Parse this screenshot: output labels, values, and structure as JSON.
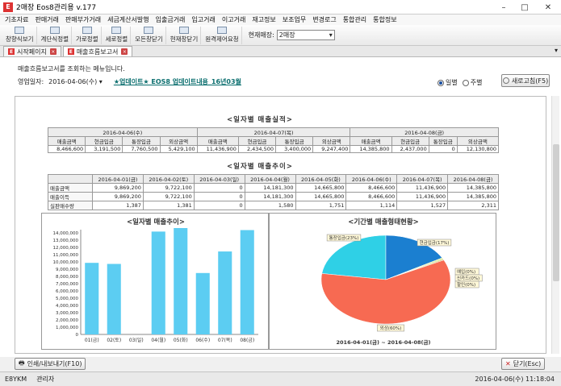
{
  "window": {
    "title": "2매장 Eos8관리용 v.177",
    "app_icon": "E"
  },
  "menu": [
    "기초자료",
    "판매거래",
    "판매부가거래",
    "세금계산서발행",
    "입출금거래",
    "입고거래",
    "이고거래",
    "재고정보",
    "보조업무",
    "변경로그",
    "통합관리",
    "통합정보"
  ],
  "toolbar": {
    "buttons": [
      "창향식보기",
      "계단식정렬",
      "가로정렬",
      "세로정렬",
      "모든창닫기",
      "현재창닫기",
      "원격제어요청"
    ],
    "store_label": "현재매장:",
    "store_value": "2매장"
  },
  "tabs": [
    {
      "label": "시작페이지",
      "active": false
    },
    {
      "label": "매출흐름보고서",
      "active": true
    }
  ],
  "report_header": {
    "description": "매출흐름보고서를 조회하는 메뉴입니다.",
    "date_label": "영업일자:",
    "date_value": "2016-04-06(수)",
    "update_link": "★업데이트★ EOS8 업데이트내용_16년03월",
    "radio_daily": "일별",
    "radio_weekly": "주별",
    "refresh_label": "새로고침(F5)"
  },
  "daily_sales": {
    "title": "<일자별 매출실적>",
    "dates": [
      "2016-04-06(수)",
      "2016-04-07(목)",
      "2016-04-08(금)"
    ],
    "columns": [
      "매출금액",
      "현금입금",
      "통장입금",
      "외상금액"
    ],
    "rows": [
      [
        "8,466,600",
        "3,191,500",
        "7,760,500",
        "5,429,100"
      ],
      [
        "11,436,900",
        "2,434,500",
        "3,400,000",
        "9,247,400"
      ],
      [
        "14,385,800",
        "2,437,000",
        "0",
        "12,130,800"
      ]
    ]
  },
  "sales_trend": {
    "title": "<일자별 매출추이>",
    "dates": [
      "2016-04-01(금)",
      "2016-04-02(토)",
      "2016-04-03(일)",
      "2016-04-04(월)",
      "2016-04-05(화)",
      "2016-04-06(수)",
      "2016-04-07(목)",
      "2016-04-08(금)"
    ],
    "rows": [
      {
        "label": "매출금액",
        "values": [
          "9,869,200",
          "9,722,100",
          "0",
          "14,181,300",
          "14,665,800",
          "8,466,600",
          "11,436,900",
          "14,385,800"
        ]
      },
      {
        "label": "매출이득",
        "values": [
          "9,869,200",
          "9,722,100",
          "0",
          "14,181,300",
          "14,665,800",
          "8,466,600",
          "11,436,900",
          "14,385,800"
        ]
      },
      {
        "label": "실판매수량",
        "values": [
          "1,387",
          "1,381",
          "0",
          "1,580",
          "1,751",
          "1,114",
          "1,527",
          "2,311"
        ]
      }
    ]
  },
  "chart_data": [
    {
      "type": "bar",
      "title": "<일자별 매출추이>",
      "categories": [
        "01(금)",
        "02(토)",
        "03(일)",
        "04(월)",
        "05(화)",
        "06(수)",
        "07(목)",
        "08(금)"
      ],
      "values": [
        9869200,
        9722100,
        0,
        14181300,
        14665800,
        8466600,
        11436900,
        14385800
      ],
      "ylim": [
        0,
        14000000
      ],
      "yticks": [
        "0",
        "1,000,000",
        "2,000,000",
        "3,000,000",
        "4,000,000",
        "5,000,000",
        "6,000,000",
        "7,000,000",
        "8,000,000",
        "9,000,000",
        "10,000,000",
        "11,000,000",
        "12,000,000",
        "13,000,000",
        "14,000,000"
      ],
      "color": "#5ccdf2",
      "grid": false
    },
    {
      "type": "pie",
      "title": "<기간별 매출형태현황>",
      "slices": [
        {
          "label": "통장입금(23%)",
          "value": 23,
          "color": "#2fd0e6"
        },
        {
          "label": "현금입금(17%)",
          "value": 17,
          "color": "#1b7fd0"
        },
        {
          "label": "예입(0%)",
          "value": 0.3,
          "color": "#e8e85a"
        },
        {
          "label": "신카드(0%)",
          "value": 0.3,
          "color": "#8fe05a"
        },
        {
          "label": "할인(0%)",
          "value": 0.3,
          "color": "#f0a040"
        },
        {
          "label": "외상(60%)",
          "value": 60,
          "color": "#f76a52"
        }
      ],
      "subtitle": "2016-04-01(금) ~ 2016-04-08(금)"
    }
  ],
  "bottom": {
    "print_label": "인쇄/내보내기(F10)",
    "close_label": "닫기(Esc)"
  },
  "status": {
    "code": "E8YKM",
    "user": "관리자",
    "datetime": "2016-04-06(수) 11:18:04"
  }
}
